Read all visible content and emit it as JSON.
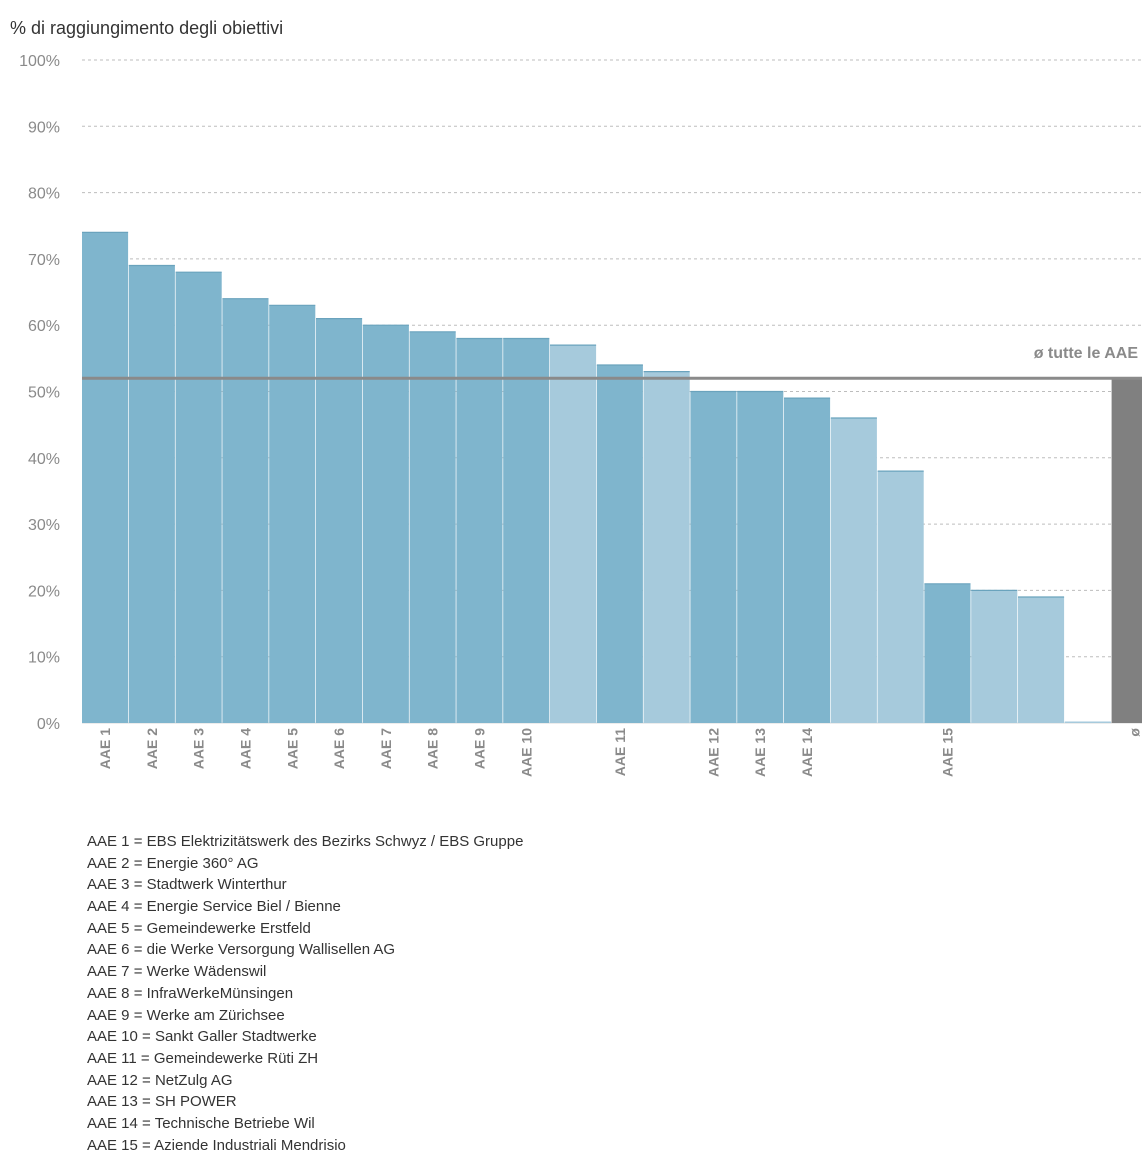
{
  "chart_data": {
    "type": "bar",
    "title": "% di raggiungimento degli obiettivi",
    "ylim": [
      0,
      100
    ],
    "yticks": [
      "0%",
      "10%",
      "20%",
      "30%",
      "40%",
      "50%",
      "60%",
      "70%",
      "80%",
      "90%",
      "100%"
    ],
    "grid": true,
    "categories": [
      "AAE 1",
      "AAE 2",
      "AAE 3",
      "AAE 4",
      "AAE 5",
      "AAE 6",
      "AAE 7",
      "AAE 8",
      "AAE 9",
      "AAE 10",
      "",
      "AAE 11",
      "",
      "AAE 12",
      "AAE 13",
      "AAE 14",
      "",
      "",
      "AAE 15",
      "",
      "",
      "",
      "ø"
    ],
    "values": [
      74,
      69,
      68,
      64,
      63,
      61,
      60,
      59,
      58,
      58,
      57,
      54,
      53,
      50,
      50,
      49,
      46,
      38,
      21,
      20,
      19,
      0,
      52
    ],
    "bar_kind": [
      "named",
      "named",
      "named",
      "named",
      "named",
      "named",
      "named",
      "named",
      "named",
      "named",
      "anonymous",
      "named",
      "anonymous",
      "named",
      "named",
      "named",
      "anonymous",
      "anonymous",
      "named",
      "anonymous",
      "anonymous",
      "anonymous",
      "average"
    ],
    "average": {
      "value": 52,
      "label": "ø tutte le AAE"
    },
    "colors": {
      "named": "#7fb5cd",
      "anonymous": "#a6cadc",
      "average": "#808080",
      "average_line": "#8a8a8a",
      "grid": "#bdbdbd"
    }
  },
  "legend": [
    "AAE 1 = EBS Elektrizitätswerk des Bezirks Schwyz / EBS Gruppe",
    "AAE 2 = Energie 360° AG",
    "AAE 3 = Stadtwerk Winterthur",
    "AAE 4 = Energie Service Biel / Bienne",
    "AAE 5 = Gemeindewerke Erstfeld",
    "AAE 6 = die Werke Versorgung Wallisellen AG",
    "AAE 7 = Werke Wädenswil",
    "AAE 8 = InfraWerkeMünsingen",
    "AAE 9 = Werke am Zürichsee",
    "AAE 10 = Sankt Galler Stadtwerke",
    "AAE 11 = Gemeindewerke Rüti ZH",
    "AAE 12 = NetZulg AG",
    "AAE 13 = SH POWER",
    "AAE 14 = Technische Betriebe Wil",
    "AAE 15 = Aziende Industriali Mendrisio"
  ]
}
